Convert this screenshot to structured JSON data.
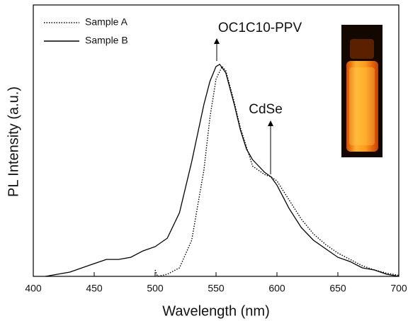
{
  "chart_data": {
    "type": "line",
    "x_label": "Wavelength (nm)",
    "y_label": "PL Intensity (a.u.)",
    "xlim": [
      400,
      700
    ],
    "xticks": [
      400,
      450,
      500,
      550,
      600,
      650,
      700
    ],
    "ylim": [
      0,
      1.28
    ],
    "legend": "upper left",
    "annotations": [
      "OC1C10-PPV",
      "CdSe"
    ],
    "series": [
      {
        "name": "Sample A",
        "color": "#000000",
        "dash": "dotted",
        "x": [
          500,
          502,
          510,
          520,
          530,
          540,
          545,
          550,
          555,
          558,
          565,
          570,
          580,
          590,
          595,
          600,
          610,
          620,
          630,
          640,
          650,
          660,
          670,
          680,
          690,
          700
        ],
        "values": [
          0.03,
          0.0,
          0.01,
          0.04,
          0.17,
          0.5,
          0.75,
          0.93,
          0.99,
          0.97,
          0.82,
          0.7,
          0.52,
          0.48,
          0.47,
          0.45,
          0.36,
          0.27,
          0.2,
          0.15,
          0.11,
          0.08,
          0.05,
          0.03,
          0.015,
          0.005
        ]
      },
      {
        "name": "Sample B",
        "color": "#000000",
        "dash": "solid",
        "x": [
          410,
          430,
          450,
          460,
          470,
          480,
          490,
          500,
          510,
          520,
          530,
          540,
          545,
          550,
          553,
          558,
          565,
          570,
          575,
          580,
          590,
          595,
          600,
          610,
          620,
          630,
          640,
          650,
          660,
          670,
          680,
          690,
          700
        ],
        "values": [
          0.0,
          0.02,
          0.06,
          0.08,
          0.08,
          0.09,
          0.12,
          0.14,
          0.18,
          0.3,
          0.54,
          0.81,
          0.92,
          0.99,
          1.0,
          0.96,
          0.81,
          0.69,
          0.6,
          0.55,
          0.49,
          0.47,
          0.43,
          0.32,
          0.23,
          0.17,
          0.13,
          0.09,
          0.07,
          0.04,
          0.03,
          0.01,
          0.0
        ]
      }
    ]
  }
}
